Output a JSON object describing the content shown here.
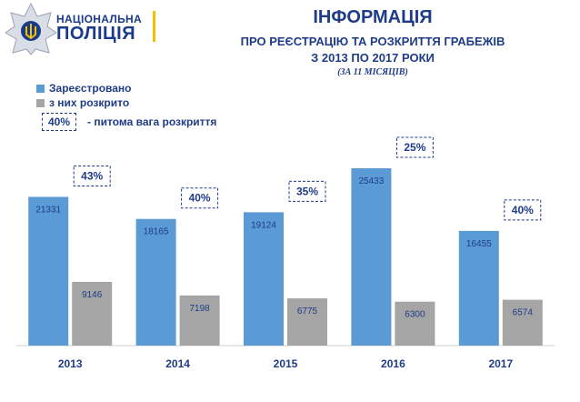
{
  "logo": {
    "line1": "НАЦІОНАЛЬНА",
    "line2": "ПОЛІЦІЯ"
  },
  "header": {
    "title": "ІНФОРМАЦІЯ",
    "subtitle1": "ПРО РЕЄСТРАЦІЮ ТА РОЗКРИТТЯ ГРАБЕЖІВ",
    "subtitle2": "З 2013 ПО 2017 РОКИ",
    "subtitle3": "(ЗА 11 МІСЯЦІВ)"
  },
  "legend": {
    "registered": "Зареєстровано",
    "solved": "з них розкрито",
    "ratio_example": "40%",
    "ratio_text": "- питома вага розкриття"
  },
  "colors": {
    "registered": "#5b9bd5",
    "solved": "#a5a5a5",
    "text": "#1f3c88"
  },
  "chart_data": {
    "type": "bar",
    "categories": [
      "2013",
      "2014",
      "2015",
      "2016",
      "2017"
    ],
    "series": [
      {
        "name": "Зареєстровано",
        "values": [
          21331,
          18165,
          19124,
          25433,
          16455
        ]
      },
      {
        "name": "з них розкрито",
        "values": [
          9146,
          7198,
          6775,
          6300,
          6574
        ]
      }
    ],
    "solve_rate": [
      "43%",
      "40%",
      "35%",
      "25%",
      "40%"
    ],
    "ylim": [
      0,
      30000
    ],
    "grid": false,
    "legend_position": "top-left"
  }
}
